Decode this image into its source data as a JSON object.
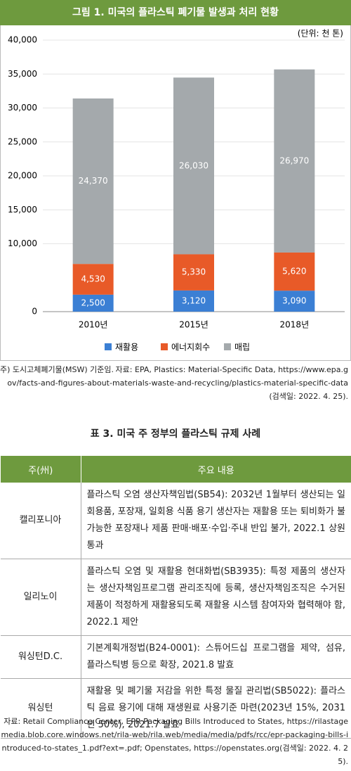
{
  "figure_title": "그림 1. 미국의 플라스틱 폐기물 발생과 처리 현황",
  "chart_data": {
    "type": "stacked-bar",
    "unit": "(단위: 천 톤)",
    "categories": [
      "2010년",
      "2015년",
      "2018년"
    ],
    "series": [
      {
        "name": "재활용",
        "color": "#3b7fd4",
        "values": [
          2500,
          3120,
          3090
        ],
        "value_labels": [
          "2,500",
          "3,120",
          "3,090"
        ]
      },
      {
        "name": "에너지회수",
        "color": "#e85a28",
        "values": [
          4530,
          5330,
          5620
        ],
        "value_labels": [
          "4,530",
          "5,330",
          "5,620"
        ]
      },
      {
        "name": "매립",
        "color": "#a4a9ac",
        "values": [
          24370,
          26030,
          26970
        ],
        "value_labels": [
          "24,370",
          "26,030",
          "26,970"
        ]
      }
    ],
    "ylim": [
      0,
      40000
    ],
    "yticks": [
      0,
      {
        "value": 10000,
        "label": "10,000"
      },
      {
        "value": 15000,
        "label": "15,000"
      },
      {
        "value": 20000,
        "label": "20,000"
      },
      {
        "value": 25000,
        "label": "25,000"
      },
      {
        "value": 30000,
        "label": "30,000"
      },
      {
        "value": 35000,
        "label": "35,000"
      },
      {
        "value": 40000,
        "label": "40,000"
      }
    ],
    "grid": true
  },
  "chart_note": "주) 도시고체폐기물(MSW) 기준임.",
  "chart_source": "자료: EPA, Plastics: Material-Specific Data, https://www.epa.gov/facts-and-figures-about-materials-waste-and-recycling/plastics-material-specific-data(검색일: 2022. 4. 25).",
  "table": {
    "title": "표 3. 미국 주 정부의 플라스틱 규제 사례",
    "header": [
      "주(州)",
      "주요 내용"
    ],
    "rows": [
      [
        "캘리포니아",
        "플라스틱 오염 생산자책임법(SB54): 2032년 1월부터 생산되는 일회용품, 포장재, 일회용 식품 용기 생산자는 재활용 또는 퇴비화가 불가능한 포장재나 제품 판매·배포·수입·주내 반입 불가, 2022.1 상원 통과"
      ],
      [
        "일리노이",
        "플라스틱 오염 및 재활용 현대화법(SB3935): 특정 제품의 생산자는 생산자책임프로그램 관리조직에 등록, 생산자책임조직은 수거된 제품이 적정하게 재활용되도록 재활용 시스템 참여자와 협력해야 함, 2022.1 제안"
      ],
      [
        "워싱턴D.C.",
        "기본계획개정법(B24-0001): 스튜어드십 프로그램을 제약, 섬유, 플라스틱병 등으로 확장, 2021.8 발효"
      ],
      [
        "워싱턴",
        "재활용 및 폐기물 저감을 위한 특정 물질 관리법(SB5022): 플라스틱 음료 용기에 대해 재생원료 사용기준 마련(2023년 15%, 2031년 50%), 2021.7 발효"
      ]
    ],
    "source": "자료: Retail Compliance Center, EPR Packaging Bills Introduced to States, https://rilastagemedia.blob.core.windows.net/rila-web/rila.web/media/media/pdfs/rcc/epr-packaging-bills-introduced-to-states_1.pdf?ext=.pdf; Openstates, https://openstates.org(검색일: 2022. 4. 25)."
  }
}
